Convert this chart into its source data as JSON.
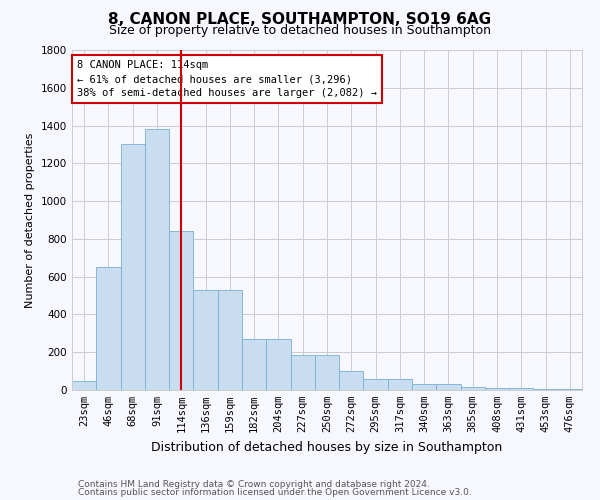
{
  "title": "8, CANON PLACE, SOUTHAMPTON, SO19 6AG",
  "subtitle": "Size of property relative to detached houses in Southampton",
  "xlabel": "Distribution of detached houses by size in Southampton",
  "ylabel": "Number of detached properties",
  "categories": [
    "23sqm",
    "46sqm",
    "68sqm",
    "91sqm",
    "114sqm",
    "136sqm",
    "159sqm",
    "182sqm",
    "204sqm",
    "227sqm",
    "250sqm",
    "272sqm",
    "295sqm",
    "317sqm",
    "340sqm",
    "363sqm",
    "385sqm",
    "408sqm",
    "431sqm",
    "453sqm",
    "476sqm"
  ],
  "values": [
    50,
    650,
    1300,
    1380,
    840,
    530,
    530,
    270,
    270,
    185,
    185,
    100,
    60,
    60,
    30,
    30,
    15,
    10,
    10,
    5,
    5
  ],
  "bar_color": "#c9ddf0",
  "bar_edge_color": "#7aafcf",
  "vline_x_index": 4,
  "vline_color": "#cc0000",
  "annotation_text": "8 CANON PLACE: 114sqm\n← 61% of detached houses are smaller (3,296)\n38% of semi-detached houses are larger (2,082) →",
  "annotation_box_color": "#ffffff",
  "annotation_box_edge_color": "#cc0000",
  "ylim": [
    0,
    1800
  ],
  "yticks": [
    0,
    200,
    400,
    600,
    800,
    1000,
    1200,
    1400,
    1600,
    1800
  ],
  "grid_color": "#cccccc",
  "background_color": "#f7f7ff",
  "footer_line1": "Contains HM Land Registry data © Crown copyright and database right 2024.",
  "footer_line2": "Contains public sector information licensed under the Open Government Licence v3.0.",
  "title_fontsize": 11,
  "subtitle_fontsize": 9,
  "xlabel_fontsize": 9,
  "ylabel_fontsize": 8,
  "tick_fontsize": 7.5,
  "annotation_fontsize": 7.5,
  "footer_fontsize": 6.5
}
